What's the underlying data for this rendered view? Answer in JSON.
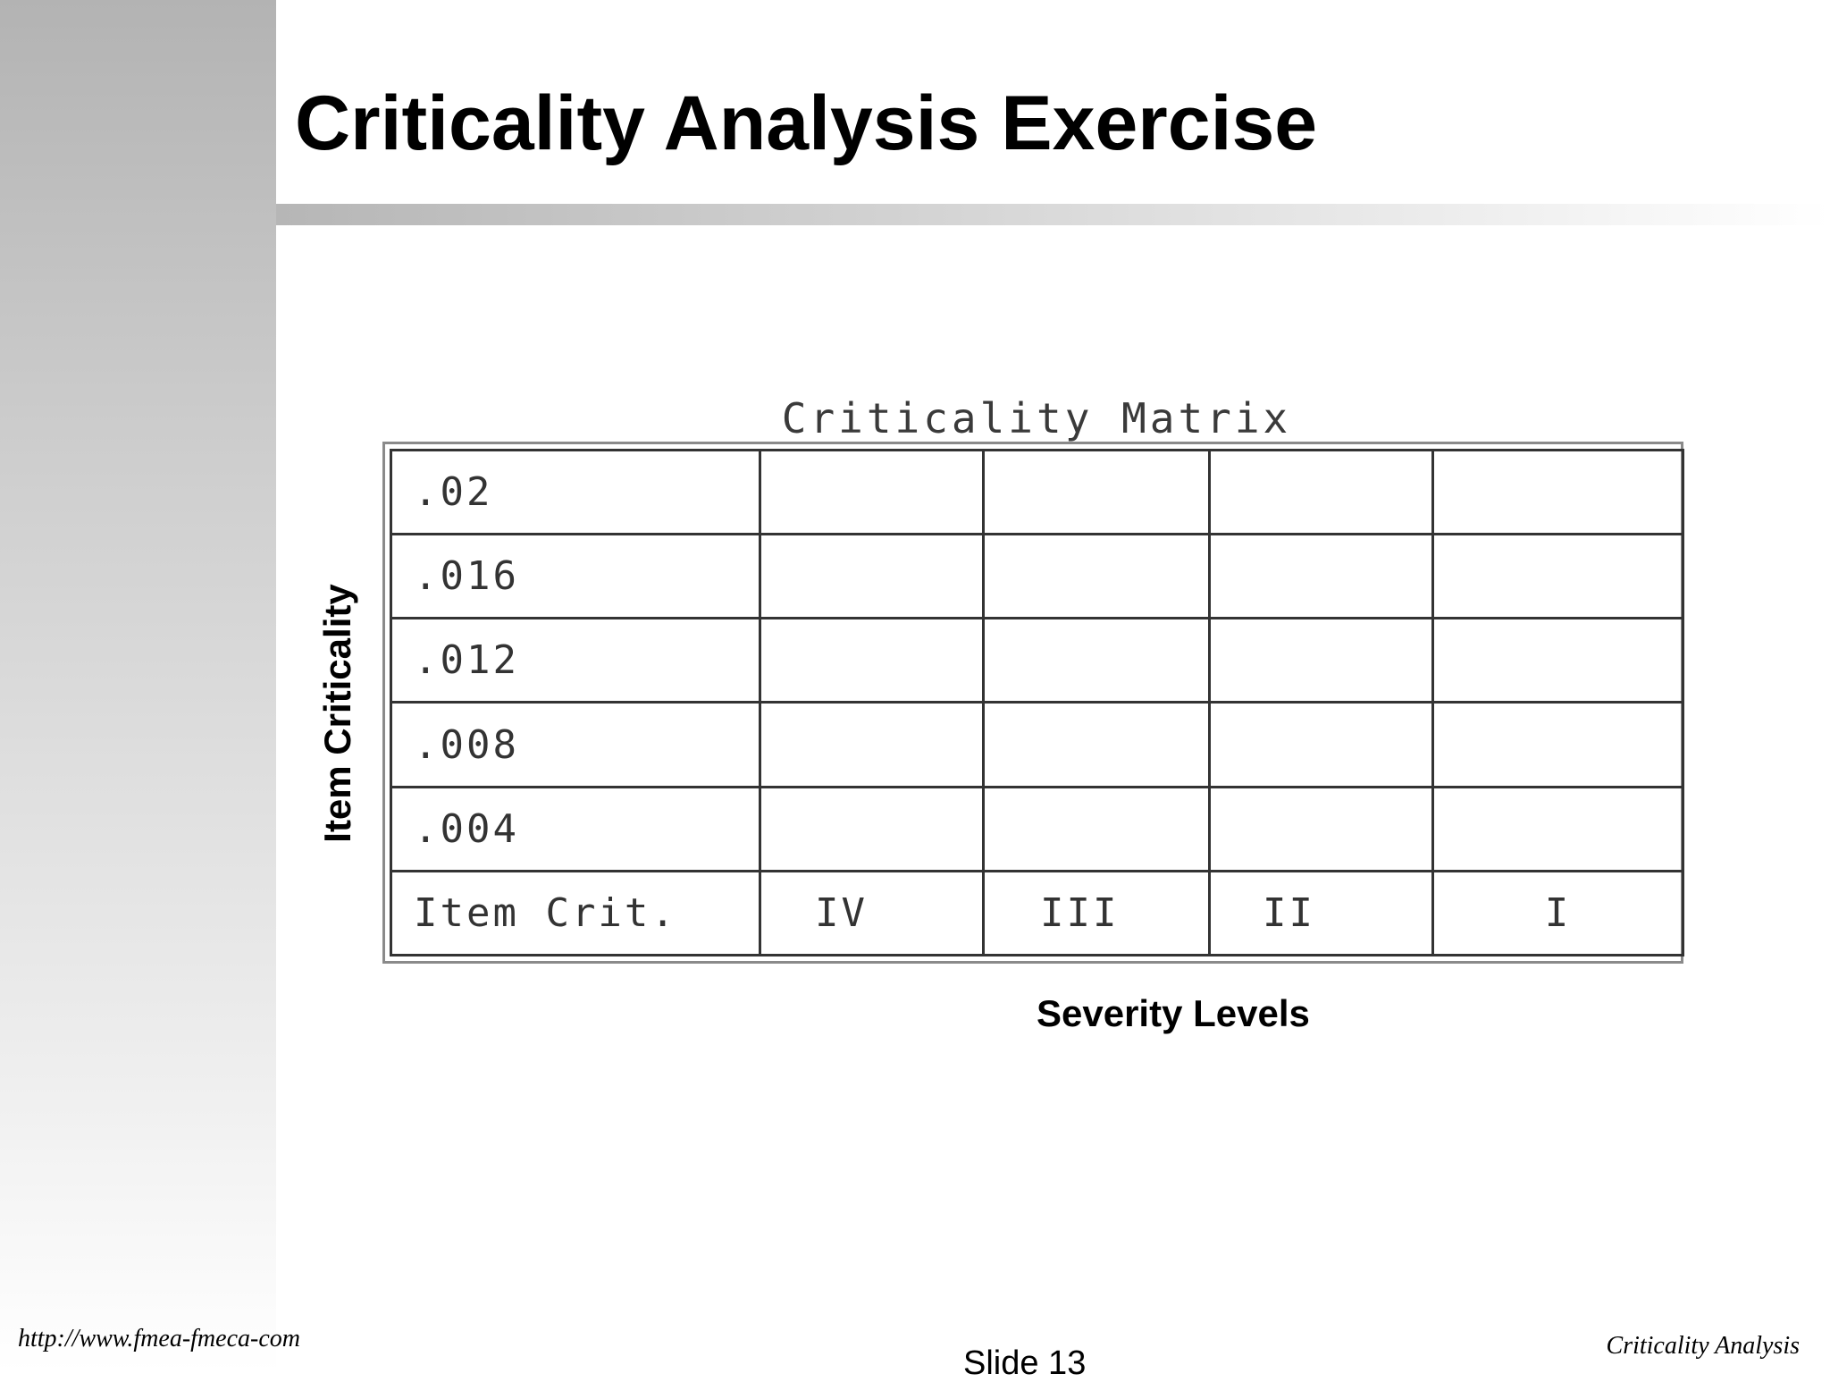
{
  "slide": {
    "title": "Criticality Analysis Exercise",
    "footer_url": "http://www.fmea-fmeca-com",
    "slide_number": "Slide 13",
    "footer_topic": "Criticality Analysis"
  },
  "matrix": {
    "caption": "Criticality Matrix",
    "y_axis_label": "Item Criticality",
    "x_axis_label": "Severity Levels",
    "row_labels": [
      ".02",
      ".016",
      ".012",
      ".008",
      ".004"
    ],
    "corner_label": "Item Crit.",
    "severity_levels": [
      "IV",
      "III",
      "II",
      "I"
    ]
  }
}
